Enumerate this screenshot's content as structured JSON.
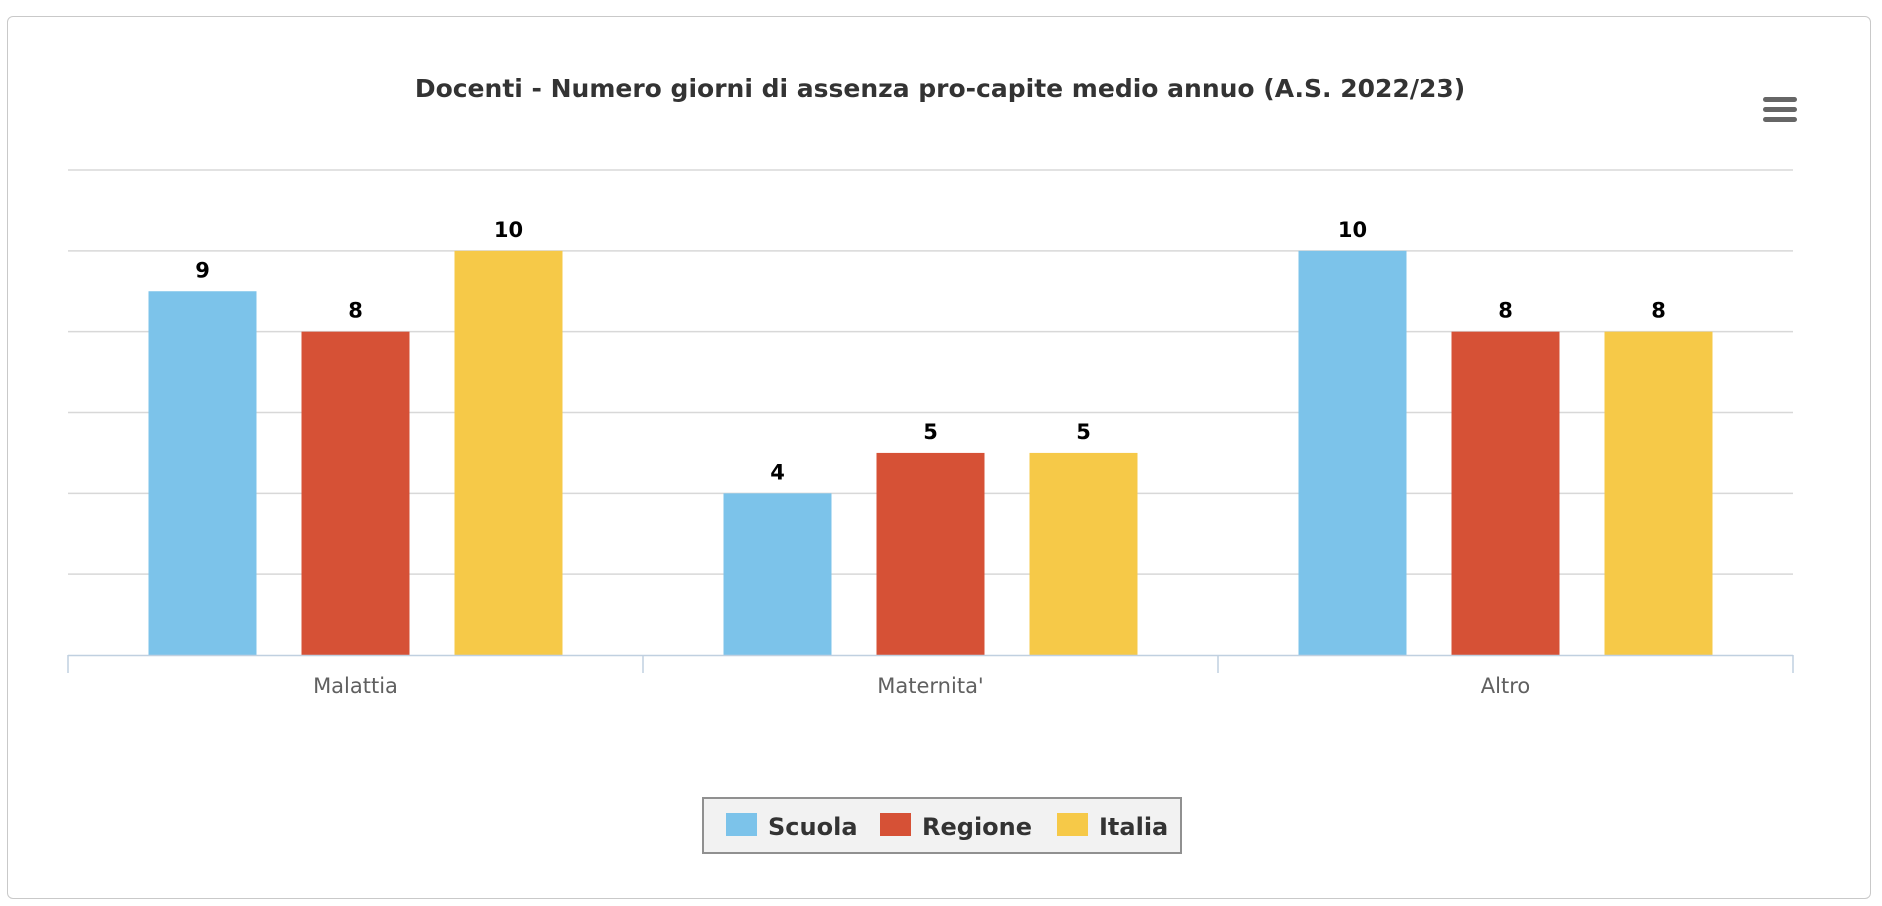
{
  "chart_data": {
    "type": "bar",
    "title": "Docenti - Numero giorni di assenza pro-capite medio annuo (A.S. 2022/23)",
    "xlabel": "",
    "ylabel": "",
    "categories": [
      "Malattia",
      "Maternita'",
      "Altro"
    ],
    "series": [
      {
        "name": "Scuola",
        "color": "#7cc3ea",
        "values": [
          9,
          4,
          10
        ]
      },
      {
        "name": "Regione",
        "color": "#d65136",
        "values": [
          8,
          5,
          8
        ]
      },
      {
        "name": "Italia",
        "color": "#f6c948",
        "values": [
          10,
          5,
          8
        ]
      }
    ],
    "ylim": [
      0,
      12
    ],
    "ytick_step": 2,
    "grid": true,
    "legend_position": "bottom-center",
    "data_labels": true
  },
  "toolbar": {
    "menu_icon": "hamburger-menu-icon"
  }
}
